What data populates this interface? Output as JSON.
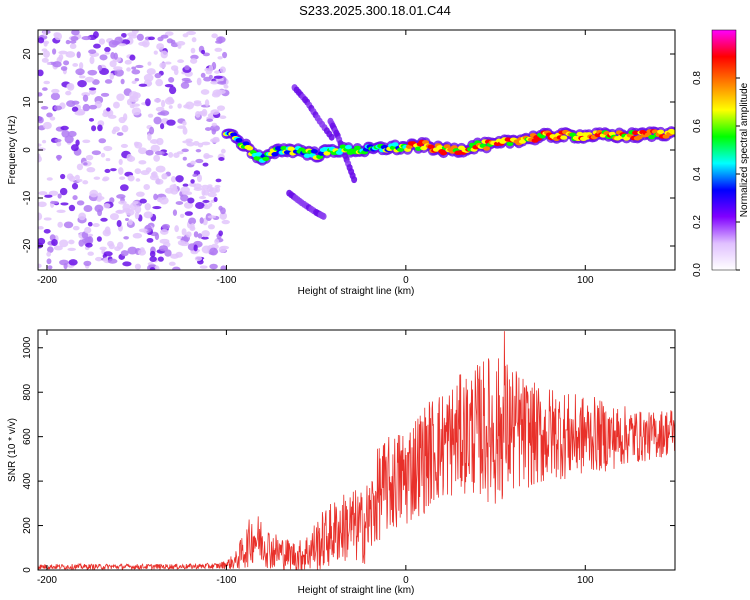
{
  "title": "S233.2025.300.18.01.C44",
  "colors": {
    "snr_line": "#e8302a",
    "frame": "#000000",
    "spectrum_low": "#c89cf4",
    "spectrum_mid": "#6a10e8"
  },
  "chart_data": [
    {
      "type": "heatmap",
      "xlabel": "Height of straight line (km)",
      "ylabel": "Frequency (Hz)",
      "xlim": [
        -205,
        150
      ],
      "ylim": [
        -25,
        25
      ],
      "xticks": [
        -200,
        -100,
        0,
        100
      ],
      "xtick_labels": [
        "-200",
        "-100",
        "0",
        "100"
      ],
      "yticks": [
        -20,
        -10,
        0,
        10,
        20
      ],
      "ytick_labels": [
        "-20",
        "-10",
        "0",
        "10",
        "20"
      ],
      "colorbar": {
        "label": "Normalized spectral amplitude",
        "range": [
          0,
          1
        ],
        "ticks": [
          0.0,
          0.2,
          0.4,
          0.6,
          0.8
        ],
        "tick_labels": [
          "0.0",
          "0.2",
          "0.4",
          "0.6",
          "0.8"
        ],
        "colormap": [
          "#ffffff",
          "#e0c0ff",
          "#8000ff",
          "#0000ff",
          "#00ffff",
          "#00ff00",
          "#ffff00",
          "#ff8000",
          "#ff0000",
          "#ff00ff"
        ]
      },
      "ridge": {
        "x": [
          -100,
          -90,
          -80,
          -70,
          -60,
          -50,
          -40,
          -30,
          -20,
          -10,
          0,
          10,
          20,
          30,
          40,
          50,
          60,
          70,
          80,
          90,
          100,
          110,
          120,
          130,
          140,
          150
        ],
        "y": [
          4,
          1,
          -2,
          0,
          0,
          -1,
          0,
          0,
          0,
          0.5,
          0.5,
          1,
          0,
          0,
          1,
          1,
          2,
          2.5,
          3,
          3,
          3,
          3,
          3,
          3,
          3.5,
          3.5
        ]
      },
      "noise_region": {
        "x_range": [
          -205,
          -100
        ],
        "y_range": [
          -25,
          25
        ],
        "amplitude": 0.15
      },
      "branches": [
        {
          "x": [
            -62,
            -55,
            -48,
            -40
          ],
          "y": [
            13,
            10,
            6,
            2
          ]
        },
        {
          "x": [
            -42,
            -38,
            -33,
            -28
          ],
          "y": [
            6,
            3,
            -2,
            -7
          ]
        },
        {
          "x": [
            -65,
            -58,
            -50,
            -45
          ],
          "y": [
            -9,
            -11,
            -13,
            -14
          ]
        }
      ]
    },
    {
      "type": "line",
      "xlabel": "Height of straight line (km)",
      "ylabel": "SNR (10 * v/v)",
      "xlim": [
        -205,
        150
      ],
      "ylim": [
        0,
        1080
      ],
      "xticks": [
        -200,
        -100,
        0,
        100
      ],
      "xtick_labels": [
        "-200",
        "-100",
        "0",
        "100"
      ],
      "yticks": [
        0,
        200,
        400,
        600,
        800,
        1000
      ],
      "ytick_labels": [
        "0",
        "200",
        "400",
        "600",
        "800",
        "1000"
      ],
      "series": [
        {
          "name": "SNR",
          "x": [
            -205,
            -180,
            -150,
            -120,
            -105,
            -100,
            -95,
            -90,
            -85,
            -80,
            -75,
            -70,
            -65,
            -60,
            -55,
            -50,
            -45,
            -40,
            -35,
            -30,
            -25,
            -20,
            -15,
            -10,
            -5,
            0,
            5,
            10,
            15,
            20,
            25,
            30,
            35,
            40,
            45,
            50,
            55,
            60,
            65,
            70,
            75,
            80,
            85,
            90,
            95,
            100,
            105,
            110,
            115,
            120,
            125,
            130,
            135,
            140,
            145,
            150
          ],
          "baseline": [
            15,
            15,
            15,
            16,
            18,
            25,
            40,
            90,
            150,
            130,
            90,
            80,
            70,
            60,
            80,
            110,
            140,
            170,
            190,
            200,
            190,
            230,
            350,
            380,
            400,
            420,
            470,
            500,
            540,
            560,
            580,
            610,
            620,
            630,
            640,
            620,
            640,
            630,
            620,
            610,
            600,
            610,
            620,
            600,
            600,
            610,
            610,
            600,
            600,
            600,
            610,
            600,
            600,
            610,
            620,
            630
          ],
          "spread": [
            12,
            12,
            12,
            12,
            14,
            20,
            40,
            90,
            120,
            110,
            90,
            80,
            70,
            70,
            90,
            120,
            140,
            150,
            160,
            170,
            170,
            200,
            220,
            220,
            230,
            240,
            240,
            250,
            250,
            260,
            260,
            270,
            280,
            300,
            330,
            350,
            320,
            300,
            260,
            240,
            230,
            220,
            210,
            200,
            190,
            180,
            170,
            160,
            150,
            140,
            130,
            120,
            110,
            110,
            110,
            110
          ],
          "peak": {
            "x": 55,
            "y": 1075
          }
        }
      ]
    }
  ]
}
